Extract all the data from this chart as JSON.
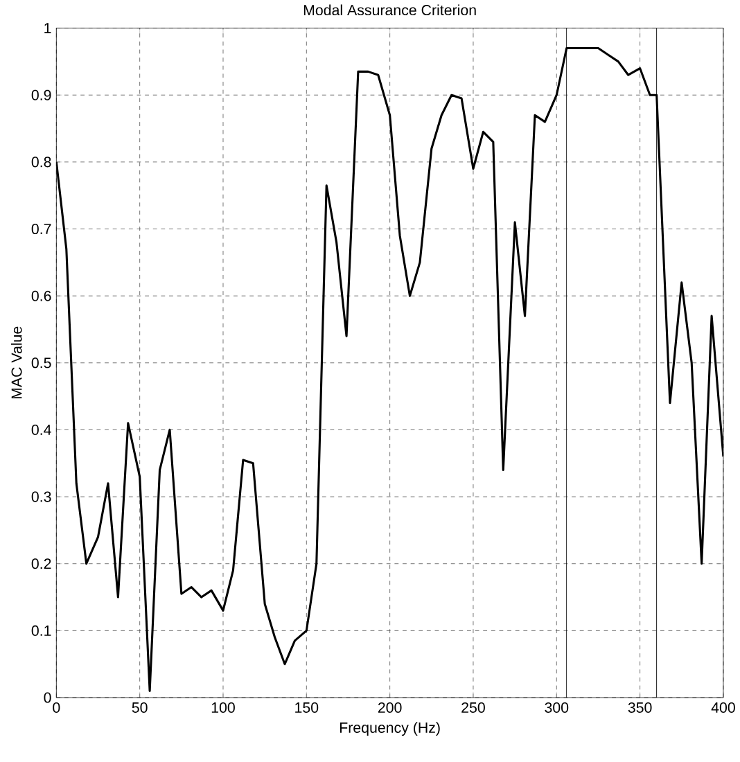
{
  "chart_data": {
    "type": "line",
    "title": "Modal Assurance Criterion",
    "xlabel": "Frequency (Hz)",
    "ylabel": "MAC Value",
    "x": [
      0,
      6,
      12,
      18,
      25,
      31,
      37,
      43,
      50,
      56,
      62,
      68,
      75,
      81,
      87,
      93,
      100,
      106,
      112,
      118,
      125,
      131,
      137,
      143,
      150,
      156,
      162,
      168,
      174,
      181,
      187,
      193,
      200,
      206,
      212,
      218,
      225,
      231,
      237,
      243,
      250,
      256,
      262,
      268,
      275,
      281,
      287,
      293,
      300,
      306,
      312,
      318,
      325,
      331,
      337,
      343,
      350,
      356,
      360,
      368,
      375,
      381,
      387,
      393,
      400
    ],
    "series": [
      {
        "color": "#000000",
        "values": [
          0.8,
          0.67,
          0.32,
          0.2,
          0.24,
          0.32,
          0.15,
          0.41,
          0.33,
          0.01,
          0.34,
          0.4,
          0.155,
          0.165,
          0.15,
          0.16,
          0.13,
          0.19,
          0.355,
          0.35,
          0.14,
          0.09,
          0.05,
          0.085,
          0.1,
          0.2,
          0.765,
          0.68,
          0.54,
          0.935,
          0.935,
          0.93,
          0.87,
          0.69,
          0.6,
          0.65,
          0.82,
          0.87,
          0.9,
          0.895,
          0.79,
          0.845,
          0.83,
          0.34,
          0.71,
          0.57,
          0.87,
          0.86,
          0.9,
          0.97,
          0.97,
          0.97,
          0.97,
          0.96,
          0.95,
          0.93,
          0.94,
          0.9,
          0.9,
          0.44,
          0.62,
          0.5,
          0.2,
          0.57,
          0.36
        ]
      }
    ],
    "xlim": [
      0,
      400
    ],
    "ylim": [
      0,
      1
    ],
    "xticks": [
      0,
      50,
      100,
      150,
      200,
      250,
      300,
      350,
      400
    ],
    "yticks": [
      0,
      0.1,
      0.2,
      0.3,
      0.4,
      0.5,
      0.6,
      0.7,
      0.8,
      0.9,
      1
    ],
    "grid": true,
    "line_style": "solid",
    "marker": "none",
    "ref_lines": [
      {
        "axis": "x",
        "value": 306,
        "color": "#000000",
        "line_style": "solid"
      },
      {
        "axis": "x",
        "value": 360,
        "color": "#000000",
        "line_style": "solid"
      }
    ]
  }
}
